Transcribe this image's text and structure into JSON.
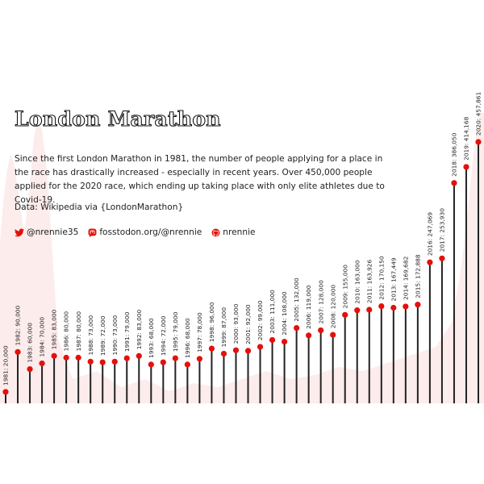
{
  "title": "London Marathon",
  "description": "Since the first London Marathon in 1981, the number of people applying for a place in the race has drastically increased - especially in recent years. Over 450,000 people applied for the 2020 race, which ending up taking place with only elite athletes due to Covid-19.",
  "source": "Data: Wikipedia via {LondonMarathon}",
  "socials": [
    {
      "icon": "twitter-icon",
      "text": "@nrennie35"
    },
    {
      "icon": "mastodon-icon",
      "text": "fosstodon.org/@nrennie"
    },
    {
      "icon": "github-icon",
      "text": "nrennie"
    }
  ],
  "colors": {
    "point": "#e4100c",
    "stem": "#222222",
    "background_area": "#fbe5e4",
    "text": "#222222"
  },
  "chart_data": {
    "type": "lollipop",
    "x": [
      1981,
      1982,
      1983,
      1984,
      1985,
      1986,
      1987,
      1988,
      1989,
      1990,
      1991,
      1992,
      1993,
      1994,
      1995,
      1996,
      1997,
      1998,
      1999,
      2000,
      2001,
      2002,
      2003,
      2004,
      2005,
      2006,
      2007,
      2008,
      2009,
      2010,
      2011,
      2012,
      2013,
      2014,
      2015,
      2016,
      2017,
      2018,
      2019,
      2020
    ],
    "values": [
      20000,
      90000,
      60000,
      70000,
      83000,
      80000,
      80000,
      73000,
      72000,
      73000,
      79000,
      83000,
      68000,
      72000,
      79000,
      68000,
      78000,
      96000,
      87000,
      93000,
      92000,
      99000,
      111000,
      108000,
      132000,
      119000,
      128000,
      120000,
      155000,
      163000,
      163926,
      170150,
      167449,
      169682,
      172888,
      247069,
      253930,
      386050,
      414168,
      457861
    ],
    "labels": [
      "1981: 20,000",
      "1982: 90,000",
      "1983: 60,000",
      "1984: 70,000",
      "1985: 83,000",
      "1986: 80,000",
      "1987: 80,000",
      "1988: 73,000",
      "1989: 72,000",
      "1990: 73,000",
      "1991: 79,000",
      "1992: 83,000",
      "1993: 68,000",
      "1994: 72,000",
      "1995: 79,000",
      "1996: 68,000",
      "1997: 78,000",
      "1998: 96,000",
      "1999: 87,000",
      "2000: 93,000",
      "2001: 92,000",
      "2002: 99,000",
      "2003: 111,000",
      "2004: 108,000",
      "2005: 132,000",
      "2006: 119,000",
      "2007: 128,000",
      "2008: 120,000",
      "2009: 155,000",
      "2010: 163,000",
      "2011: 163,926",
      "2012: 170,150",
      "2013: 167,449",
      "2014: 169,682",
      "2015: 172,888",
      "2016: 247,069",
      "2017: 253,930",
      "2018: 386,050",
      "2019: 414,168",
      "2020: 457,861"
    ],
    "ylim": [
      0,
      457861
    ],
    "grid": false,
    "legend": "none"
  }
}
